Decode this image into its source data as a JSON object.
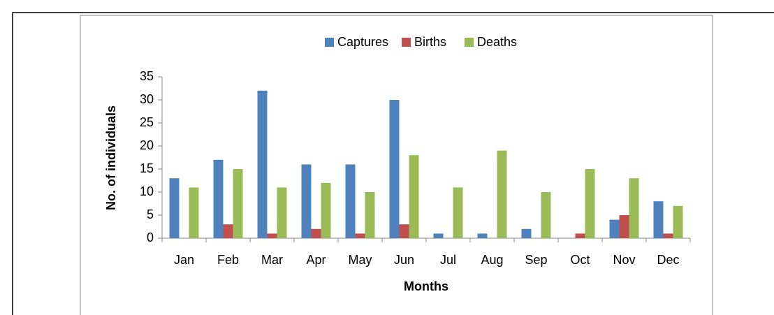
{
  "chart_data": {
    "type": "bar",
    "x_label": "Months",
    "y_label": "No. of individuals",
    "categories": [
      "Jan",
      "Feb",
      "Mar",
      "Apr",
      "May",
      "Jun",
      "Jul",
      "Aug",
      "Sep",
      "Oct",
      "Nov",
      "Dec"
    ],
    "series": [
      {
        "name": "Captures",
        "color": "#4f81bd",
        "values": [
          13,
          17,
          32,
          16,
          16,
          30,
          1,
          1,
          2,
          0,
          4,
          8
        ]
      },
      {
        "name": "Births",
        "color": "#c0504d",
        "values": [
          0,
          3,
          1,
          2,
          1,
          3,
          0,
          0,
          0,
          1,
          5,
          1
        ]
      },
      {
        "name": "Deaths",
        "color": "#9bbb59",
        "values": [
          11,
          15,
          11,
          12,
          10,
          18,
          11,
          19,
          10,
          15,
          13,
          7
        ]
      }
    ],
    "ylim": [
      0,
      35
    ],
    "yticks": [
      0,
      5,
      10,
      15,
      20,
      25,
      30,
      35
    ],
    "legend": "top"
  }
}
